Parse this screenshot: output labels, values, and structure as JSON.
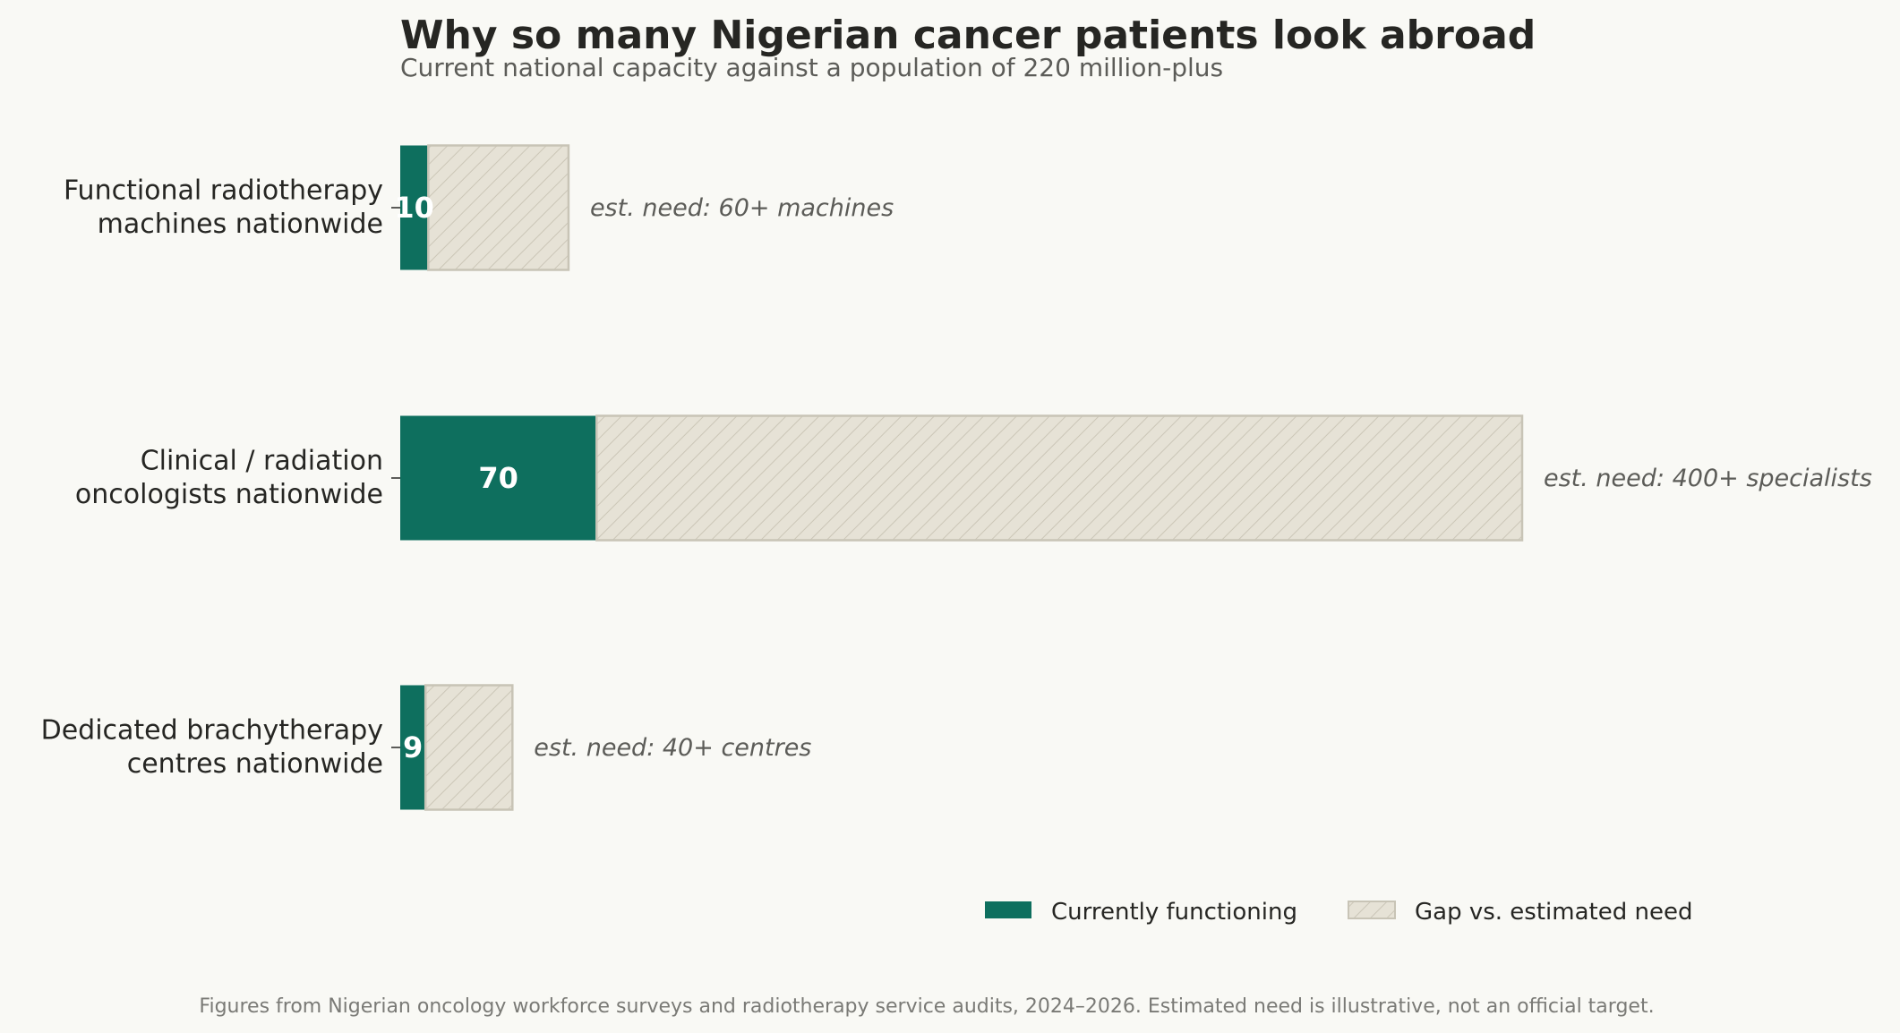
{
  "chart_data": {
    "type": "bar",
    "orientation": "horizontal",
    "stacked": true,
    "title": "Why so many Nigerian cancer patients look abroad",
    "subtitle": "Current national capacity against a population of 220 million-plus",
    "categories": [
      [
        "Functional radiotherapy",
        "machines nationwide"
      ],
      [
        "Clinical / radiation",
        "oncologists nationwide"
      ],
      [
        "Dedicated brachytherapy",
        "centres nationwide"
      ]
    ],
    "series": [
      {
        "name": "Currently functioning",
        "values": [
          10,
          70,
          9
        ],
        "color": "#0e6f5e"
      },
      {
        "name": "Gap vs. estimated need",
        "values": [
          50,
          330,
          31
        ],
        "color": "#e6e2d6",
        "pattern": "diagonal-hatch"
      }
    ],
    "value_labels": [
      "10",
      "70",
      "9"
    ],
    "annotations": [
      "est. need: 60+ machines",
      "est. need: 400+ specialists",
      "est. need: 40+ centres"
    ],
    "xlim": [
      0,
      400
    ],
    "grid": false,
    "legend_position": "bottom-right",
    "footnote": "Figures from Nigerian oncology workforce surveys and radiotherapy service audits, 2024–2026. Estimated need is illustrative, not an official target."
  }
}
